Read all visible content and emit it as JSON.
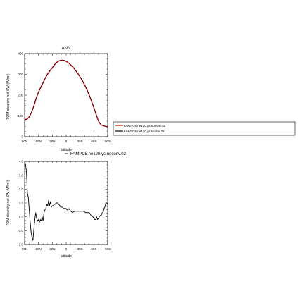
{
  "chart_data": [
    {
      "type": "line",
      "title": "ANN",
      "xlabel": "latitude",
      "ylabel": "TOM clearsky net SW (W/m²)",
      "xlim": [
        90,
        -90
      ],
      "ylim": [
        0,
        400
      ],
      "x_tick_labels": [
        "90N",
        "60N",
        "30N",
        "0",
        "30S",
        "60S",
        "90S"
      ],
      "y_tick_labels": [
        "0",
        "100",
        "200",
        "300",
        "400"
      ],
      "grid": false,
      "legend": {
        "placement": "right",
        "entries": [
          {
            "name": "FAMPC5.ne120.ys.noconv.02",
            "color": "#cc0000"
          },
          {
            "name": "FAMPC5.ne120.ys.tau5m.02",
            "color": "#000000"
          }
        ]
      },
      "x": [
        90,
        85,
        80,
        75,
        70,
        65,
        60,
        55,
        50,
        45,
        40,
        35,
        30,
        25,
        20,
        15,
        10,
        5,
        0,
        -5,
        -10,
        -15,
        -20,
        -25,
        -30,
        -35,
        -40,
        -45,
        -50,
        -55,
        -60,
        -65,
        -70,
        -75,
        -80,
        -85,
        -90
      ],
      "series": [
        {
          "name": "FAMPC5.ne120.ys.noconv.02",
          "color": "#cc0000",
          "values": [
            82,
            84,
            95,
            118,
            148,
            185,
            214,
            238,
            260,
            283,
            302,
            318,
            332,
            347,
            358,
            365,
            368,
            367,
            363,
            355,
            345,
            334,
            320,
            305,
            288,
            270,
            249,
            226,
            200,
            170,
            140,
            107,
            75,
            58,
            53,
            50,
            47
          ]
        },
        {
          "name": "FAMPC5.ne120.ys.tau5m.02",
          "color": "#000000",
          "values": [
            84,
            85,
            96,
            119,
            149,
            186,
            215,
            239,
            261,
            284,
            303,
            319,
            333,
            348,
            359,
            366,
            369,
            368,
            364,
            356,
            346,
            335,
            321,
            306,
            289,
            271,
            250,
            227,
            201,
            171,
            141,
            108,
            76,
            59,
            54,
            51,
            48
          ]
        }
      ]
    },
    {
      "type": "line",
      "title": "FAMPC5.ne120.ys.noconv.02",
      "xlabel": "latitude",
      "ylabel": "TOM clearsky net SW (W/m²)",
      "xlim": [
        90,
        -90
      ],
      "ylim": [
        -2,
        4
      ],
      "x_tick_labels": [
        "90N",
        "60N",
        "30N",
        "0",
        "30S",
        "60S",
        "90S"
      ],
      "y_tick_labels": [
        "-2.0",
        "-1.0",
        "0.0",
        "1.0",
        "2.0",
        "3.0",
        "4.0"
      ],
      "grid": false,
      "series": [
        {
          "name": "FAMPC5.ne120.ys.noconv.02",
          "color": "#000000",
          "x": [
            90,
            88,
            86,
            84,
            82,
            80,
            78,
            76,
            74,
            72,
            70,
            68,
            66,
            64,
            62,
            60,
            58,
            56,
            54,
            52,
            50,
            48,
            46,
            44,
            42,
            40,
            38,
            36,
            34,
            32,
            30,
            28,
            26,
            24,
            22,
            20,
            18,
            16,
            14,
            12,
            10,
            8,
            6,
            4,
            2,
            0,
            -2,
            -4,
            -6,
            -8,
            -10,
            -14,
            -18,
            -22,
            -26,
            -30,
            -34,
            -38,
            -42,
            -46,
            -50,
            -54,
            -58,
            -60,
            -62,
            -64,
            -66,
            -68,
            -70,
            -72,
            -74,
            -76,
            -78,
            -80,
            -82,
            -84,
            -86,
            -88,
            -90
          ],
          "values": [
            3.6,
            3.8,
            3.2,
            1.7,
            1.4,
            0.5,
            -0.4,
            -1.1,
            -1.5,
            -1.7,
            -0.9,
            -0.2,
            0.3,
            -0.1,
            -0.3,
            -0.2,
            -0.4,
            -0.2,
            -0.3,
            0.0,
            -0.3,
            0.3,
            0.5,
            0.6,
            0.9,
            0.8,
            1.2,
            0.8,
            1.1,
            0.7,
            0.8,
            0.8,
            0.9,
            0.9,
            1.0,
            1.0,
            1.0,
            0.9,
            0.8,
            0.7,
            0.7,
            0.7,
            0.6,
            0.6,
            0.6,
            0.6,
            0.5,
            0.5,
            0.6,
            0.5,
            0.4,
            0.3,
            0.4,
            0.4,
            0.4,
            0.4,
            0.4,
            0.4,
            0.3,
            0.3,
            0.3,
            0.1,
            0.0,
            -0.1,
            -0.2,
            -0.2,
            0.0,
            -0.2,
            -0.1,
            0.0,
            0.1,
            0.1,
            0.3,
            0.3,
            0.6,
            0.7,
            1.0,
            1.0,
            0.9
          ]
        }
      ]
    }
  ]
}
